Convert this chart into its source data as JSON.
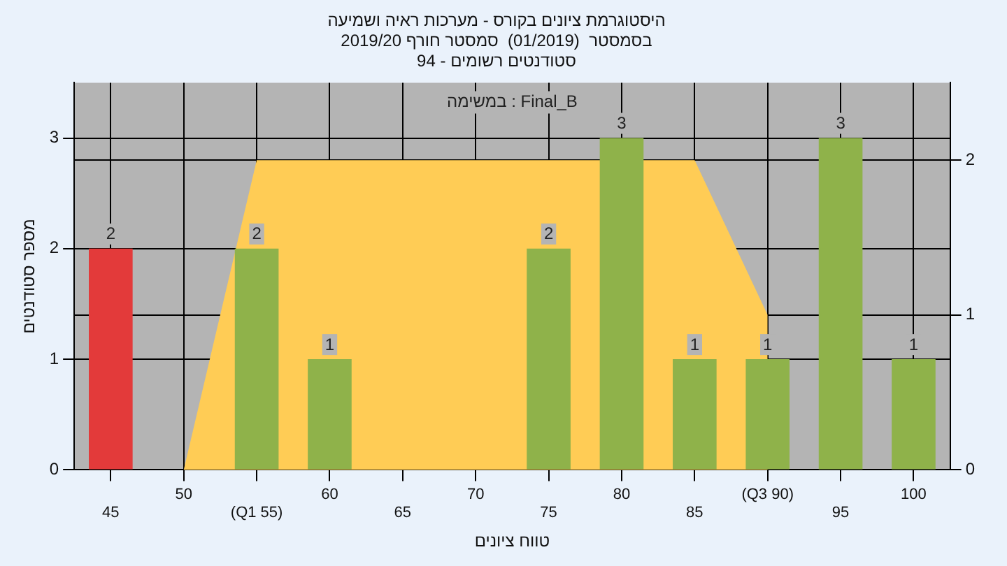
{
  "chart_data": {
    "type": "bar",
    "title": "היסטוגרמת ציונים בקורס - מערכות ראיה ושמיעה",
    "subtitle": "בסמסטר  (01/2019)  סמסטר חורף 2019/20\nסטודנטים רשומים - 94",
    "xlabel": "טווח ציונים",
    "ylabel": "מספר סטודנטים",
    "categories": [
      "45",
      "50",
      "(Q1 55)",
      "60",
      "65",
      "70",
      "75",
      "80",
      "85",
      "(Q3 90)",
      "95",
      "100"
    ],
    "series": [
      {
        "type": "area",
        "axis": "y2",
        "color": "#ffcc55",
        "values": [
          null,
          0,
          2,
          2,
          2,
          2,
          2,
          null,
          2,
          1,
          null,
          null
        ]
      },
      {
        "colors": [
          "#e33a3a",
          "#8fb24a",
          "#8fb24a",
          "#8fb24a",
          "#8fb24a",
          "#8fb24a",
          "#8fb24a",
          "#8fb24a",
          "#8fb24a",
          "#8fb24a",
          "#8fb24a",
          "#8fb24a"
        ],
        "values": [
          2,
          null,
          2,
          1,
          null,
          null,
          2,
          3,
          1,
          1,
          3,
          1
        ],
        "value_labels": [
          "2",
          null,
          "2",
          "1",
          null,
          null,
          "2",
          "3",
          "1",
          "1",
          "3",
          "1"
        ]
      }
    ],
    "ylim": [
      0,
      3.5
    ],
    "yticks": [
      0,
      1,
      2,
      3
    ],
    "y2lim": [
      0,
      2.5
    ],
    "y2ticks": [
      0,
      1,
      2
    ],
    "grid": true,
    "annotations": [
      "Final_B : במשימה"
    ]
  }
}
